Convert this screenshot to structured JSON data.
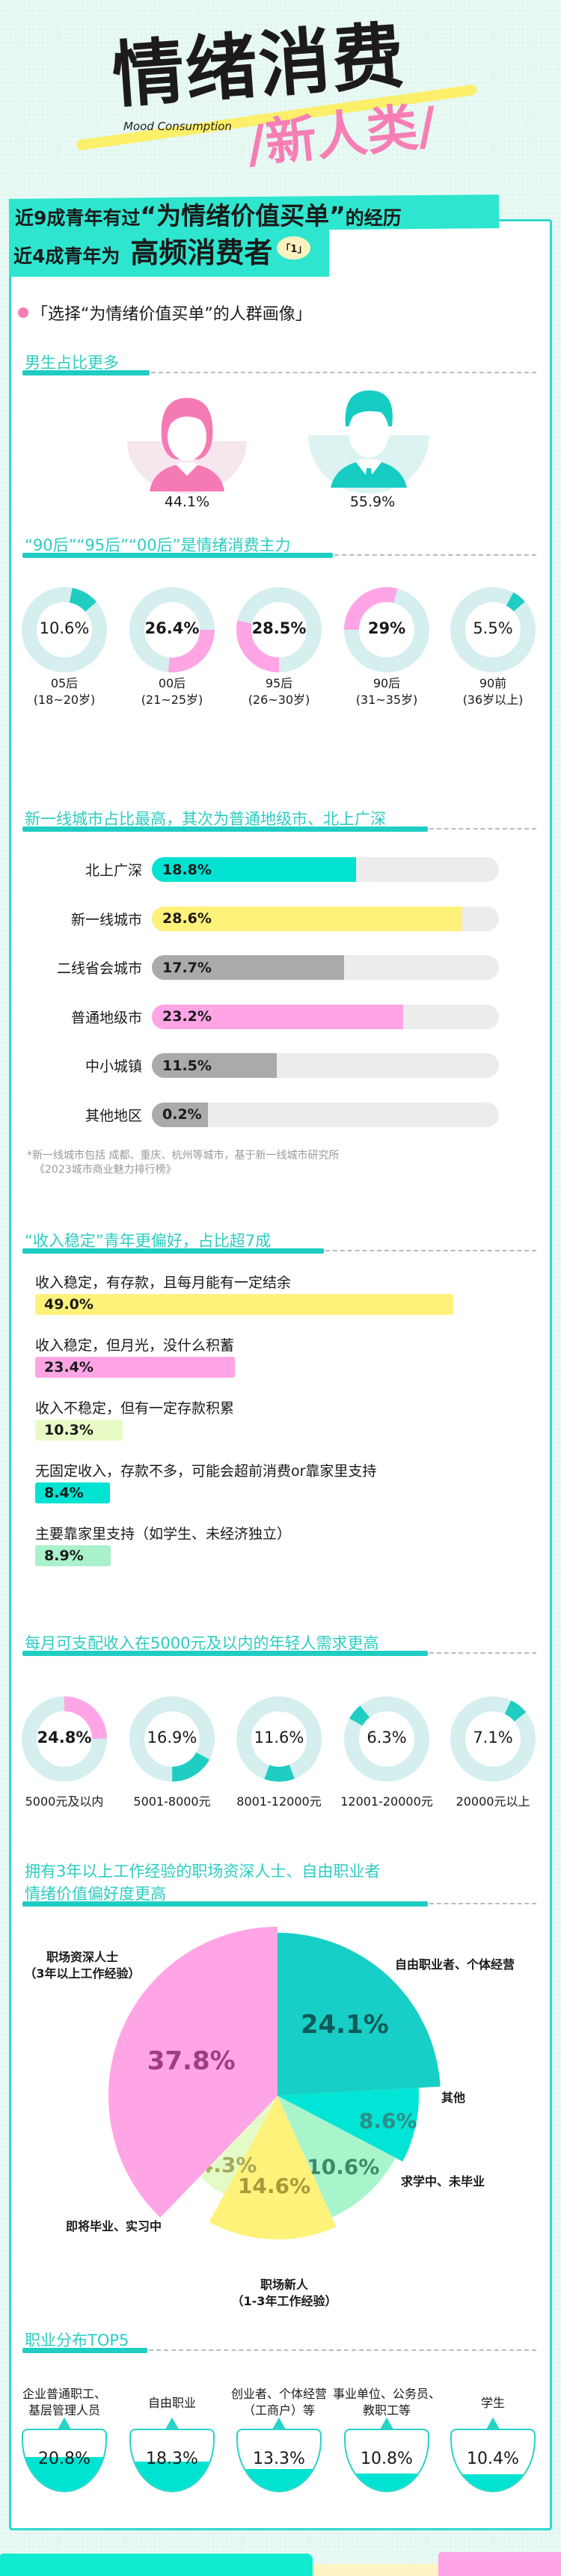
{
  "header": {
    "title": "情绪消费",
    "subtitle_en": "Mood Consumption",
    "tag": "/新人类/"
  },
  "banner": {
    "line1_a": "近9成青年有过",
    "line1_b": "“为情绪价值买单”",
    "line1_c": "的经历",
    "line2_a": "近4成青年为",
    "line2_b": "高频消费者",
    "note": "「1」"
  },
  "portrait_title": "「选择“为情绪价值买单”的人群画像」",
  "colors": {
    "teal": "#1fcdc3",
    "cyan": "#00e3d2",
    "yellow": "#fff27a",
    "pink": "#ffa5e6",
    "gray": "#aaaaaa",
    "track": "#ececec",
    "ring": "#d4efed"
  },
  "chart_data": [
    {
      "type": "pie",
      "title": "男生占比更多",
      "categories": [
        "女",
        "男"
      ],
      "values": [
        44.1,
        55.9
      ],
      "labels": [
        "44.1%",
        "55.9%"
      ]
    },
    {
      "type": "donut",
      "title": "“90后”“95后”“00后”是情绪消费主力",
      "categories": [
        "05后\n(18~20岁)",
        "00后\n(21~25岁)",
        "95后\n(26~30岁)",
        "90后\n(31~35岁)",
        "90前\n(36岁以上)"
      ],
      "values": [
        10.6,
        26.4,
        28.5,
        29,
        5.5
      ],
      "labels": [
        "10.6%",
        "26.4%",
        "28.5%",
        "29%",
        "5.5%"
      ]
    },
    {
      "type": "bar",
      "title": "新一线城市占比最高，其次为普通地级市、北上广深",
      "categories": [
        "北上广深",
        "新一线城市",
        "二线省会城市",
        "普通地级市",
        "中小城镇",
        "其他地区"
      ],
      "values": [
        18.8,
        28.6,
        17.7,
        23.2,
        11.5,
        0.2
      ],
      "labels": [
        "18.8%",
        "28.6%",
        "17.7%",
        "23.2%",
        "11.5%",
        "0.2%"
      ],
      "footnote": [
        "*新一线城市包括 成都、重庆、杭州等城市，基于新一线城市研究所",
        "《2023城市商业魅力排行榜》"
      ]
    },
    {
      "type": "bar",
      "title": "“收入稳定”青年更偏好，占比超7成",
      "categories": [
        "收入稳定，有存款，且每月能有一定结余",
        "收入稳定，但月光，没什么积蓄",
        "收入不稳定，但有一定存款积累",
        "无固定收入，存款不多，可能会超前消费or靠家里支持",
        "主要靠家里支持（如学生、未经济独立）"
      ],
      "values": [
        49.0,
        23.4,
        10.3,
        8.4,
        8.9
      ],
      "labels": [
        "49.0%",
        "23.4%",
        "10.3%",
        "8.4%",
        "8.9%"
      ]
    },
    {
      "type": "donut",
      "title": "每月可支配收入在5000元及以内的年轻人需求更高",
      "categories": [
        "5000元及以内",
        "5001-8000元",
        "8001-12000元",
        "12001-20000元",
        "20000元以上"
      ],
      "values": [
        24.8,
        16.9,
        11.6,
        6.3,
        7.1
      ],
      "labels": [
        "24.8%",
        "16.9%",
        "11.6%",
        "6.3%",
        "7.1%"
      ]
    },
    {
      "type": "pie",
      "title": [
        "拥有3年以上工作经验的职场资深人士、自由职业者",
        "情绪价值偏好度更高"
      ],
      "categories": [
        "自由职业者、个体经营",
        "其他",
        "求学中、未毕业",
        "职场新人\n（1-3年工作经验）",
        "即将毕业、实习中",
        "职场资深人士\n（3年以上工作经验）"
      ],
      "values": [
        24.1,
        8.6,
        10.6,
        14.6,
        4.3,
        37.8
      ],
      "labels": [
        "24.1%",
        "8.6%",
        "10.6%",
        "14.6%",
        "4.3%",
        "37.8%"
      ]
    },
    {
      "type": "bar",
      "title": "职业分布TOP5",
      "categories": [
        "企业普通职工、\n基层管理人员",
        "自由职业",
        "创业者、个体经营\n（工商户）等",
        "事业单位、公务员、\n教职工等",
        "学生"
      ],
      "values": [
        20.8,
        18.3,
        13.3,
        10.8,
        10.4
      ],
      "labels": [
        "20.8%",
        "18.3%",
        "13.3%",
        "10.8%",
        "10.4%"
      ]
    }
  ]
}
